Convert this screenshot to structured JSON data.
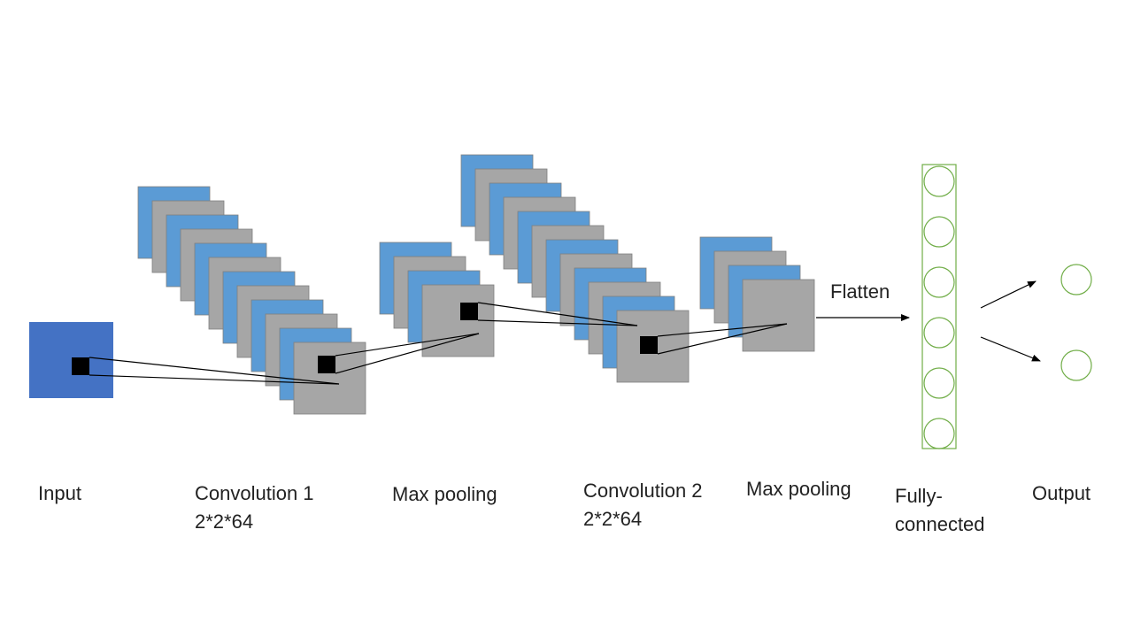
{
  "colors": {
    "background": "#ffffff",
    "input_fill": "#4472c4",
    "blue_map": "#5b9bd5",
    "gray_map": "#a6a6a6",
    "map_border": "#7f7f7f",
    "kernel": "#000000",
    "neuron": "#70ad47",
    "line": "#000000"
  },
  "labels": {
    "input": "Input",
    "conv1_line1": "Convolution 1",
    "conv1_line2": "2*2*64",
    "pool1": "Max pooling",
    "conv2_line1": "Convolution 2",
    "conv2_line2": "2*2*64",
    "pool2": "Max pooling",
    "fc_line1": "Fully-",
    "fc_line2": "connected",
    "output": "Output",
    "flatten": "Flatten"
  },
  "layers": {
    "conv1": {
      "map_count": 12,
      "icon": "feature-map-stack"
    },
    "pool1": {
      "map_count": 4,
      "icon": "feature-map-stack"
    },
    "conv2": {
      "map_count": 12,
      "icon": "feature-map-stack"
    },
    "pool2": {
      "map_count": 4,
      "icon": "feature-map-stack"
    },
    "fully_connected": {
      "neuron_count": 6,
      "icon": "neuron-circle"
    },
    "output": {
      "neuron_count": 2,
      "icon": "neuron-circle"
    }
  }
}
